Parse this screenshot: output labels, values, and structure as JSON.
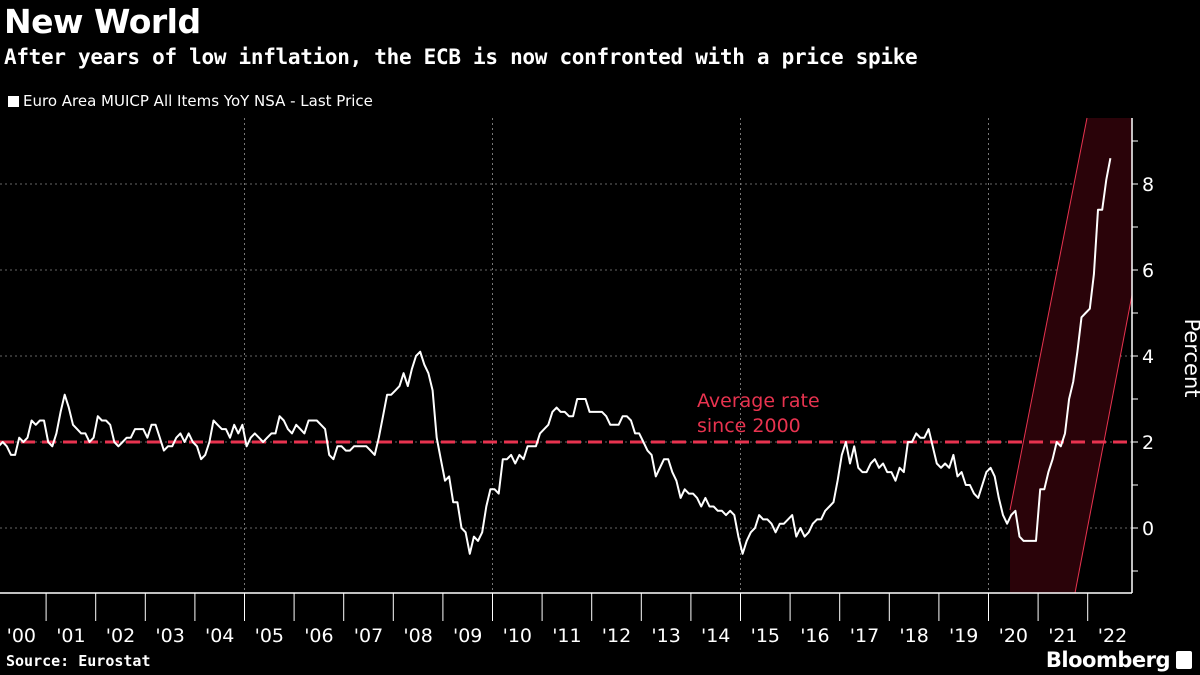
{
  "title": "New World",
  "subtitle": "After years of low inflation, the ECB is now confronted with a price spike",
  "source": "Source: Eurostat",
  "brand": "Bloomberg",
  "chart_data": {
    "type": "line",
    "title": "New World",
    "subtitle": "After years of low inflation, the ECB is now confronted with a price spike",
    "ylabel": "Percent",
    "ylim": [
      -1.5,
      9.5
    ],
    "yticks": [
      "0",
      "2",
      "4",
      "6",
      "8"
    ],
    "y_axis_side": "right",
    "xticks": [
      "'00",
      "'01",
      "'02",
      "'03",
      "'04",
      "'05",
      "'06",
      "'07",
      "'08",
      "'09",
      "'10",
      "'11",
      "'12",
      "'13",
      "'14",
      "'15",
      "'16",
      "'17",
      "'18",
      "'19",
      "'20",
      "'21",
      "'22"
    ],
    "x_range": [
      "2000-01",
      "2022-06"
    ],
    "legend_position": "top-left",
    "grid": true,
    "colors": {
      "series": "#ffffff",
      "average": "#e8334f",
      "highlight_fill": "#2a0309",
      "highlight_stroke": "#e8334f"
    },
    "series": [
      {
        "name": "Euro Area MUICP All Items YoY NSA - Last Price",
        "start": "2000-01",
        "frequency": "monthly",
        "values": [
          1.9,
          2.0,
          1.9,
          1.7,
          1.7,
          2.1,
          2.0,
          2.1,
          2.5,
          2.4,
          2.5,
          2.5,
          2.0,
          1.9,
          2.2,
          2.7,
          3.1,
          2.8,
          2.4,
          2.3,
          2.2,
          2.2,
          2.0,
          2.1,
          2.6,
          2.5,
          2.5,
          2.4,
          2.0,
          1.9,
          2.0,
          2.1,
          2.1,
          2.3,
          2.3,
          2.3,
          2.1,
          2.4,
          2.4,
          2.1,
          1.8,
          1.9,
          1.9,
          2.1,
          2.2,
          2.0,
          2.2,
          2.0,
          1.9,
          1.6,
          1.7,
          2.0,
          2.5,
          2.4,
          2.3,
          2.3,
          2.1,
          2.4,
          2.2,
          2.4,
          1.9,
          2.1,
          2.2,
          2.1,
          2.0,
          2.1,
          2.2,
          2.2,
          2.6,
          2.5,
          2.3,
          2.2,
          2.4,
          2.3,
          2.2,
          2.5,
          2.5,
          2.5,
          2.4,
          2.3,
          1.7,
          1.6,
          1.9,
          1.9,
          1.8,
          1.8,
          1.9,
          1.9,
          1.9,
          1.9,
          1.8,
          1.7,
          2.1,
          2.6,
          3.1,
          3.1,
          3.2,
          3.3,
          3.6,
          3.3,
          3.7,
          4.0,
          4.1,
          3.8,
          3.6,
          3.2,
          2.1,
          1.6,
          1.1,
          1.2,
          0.6,
          0.6,
          0.0,
          -0.1,
          -0.6,
          -0.2,
          -0.3,
          -0.1,
          0.5,
          0.9,
          0.9,
          0.8,
          1.6,
          1.6,
          1.7,
          1.5,
          1.7,
          1.6,
          1.9,
          1.9,
          1.9,
          2.2,
          2.3,
          2.4,
          2.7,
          2.8,
          2.7,
          2.7,
          2.6,
          2.6,
          3.0,
          3.0,
          3.0,
          2.7,
          2.7,
          2.7,
          2.7,
          2.6,
          2.4,
          2.4,
          2.4,
          2.6,
          2.6,
          2.5,
          2.2,
          2.2,
          2.0,
          1.8,
          1.7,
          1.2,
          1.4,
          1.6,
          1.6,
          1.3,
          1.1,
          0.7,
          0.9,
          0.8,
          0.8,
          0.7,
          0.5,
          0.7,
          0.5,
          0.5,
          0.4,
          0.4,
          0.3,
          0.4,
          0.3,
          -0.2,
          -0.6,
          -0.3,
          -0.1,
          0.0,
          0.3,
          0.2,
          0.2,
          0.1,
          -0.1,
          0.1,
          0.1,
          0.2,
          0.3,
          -0.2,
          0.0,
          -0.2,
          -0.1,
          0.1,
          0.2,
          0.2,
          0.4,
          0.5,
          0.6,
          1.1,
          1.7,
          2.0,
          1.5,
          1.9,
          1.4,
          1.3,
          1.3,
          1.5,
          1.6,
          1.4,
          1.5,
          1.3,
          1.3,
          1.1,
          1.4,
          1.3,
          2.0,
          2.0,
          2.2,
          2.1,
          2.1,
          2.3,
          1.9,
          1.5,
          1.4,
          1.5,
          1.4,
          1.7,
          1.2,
          1.3,
          1.0,
          1.0,
          0.8,
          0.7,
          1.0,
          1.3,
          1.4,
          1.2,
          0.7,
          0.3,
          0.1,
          0.3,
          0.4,
          -0.2,
          -0.3,
          -0.3,
          -0.3,
          -0.3,
          0.9,
          0.9,
          1.3,
          1.6,
          2.0,
          1.9,
          2.2,
          3.0,
          3.4,
          4.1,
          4.9,
          5.0,
          5.1,
          5.9,
          7.4,
          7.4,
          8.1,
          8.6
        ]
      }
    ],
    "reference_line": {
      "value": 2,
      "label_lines": [
        "Average rate",
        "since 2000"
      ]
    },
    "highlight": {
      "from": "2020-06",
      "to": "2022-06",
      "shape": "rising band"
    }
  }
}
